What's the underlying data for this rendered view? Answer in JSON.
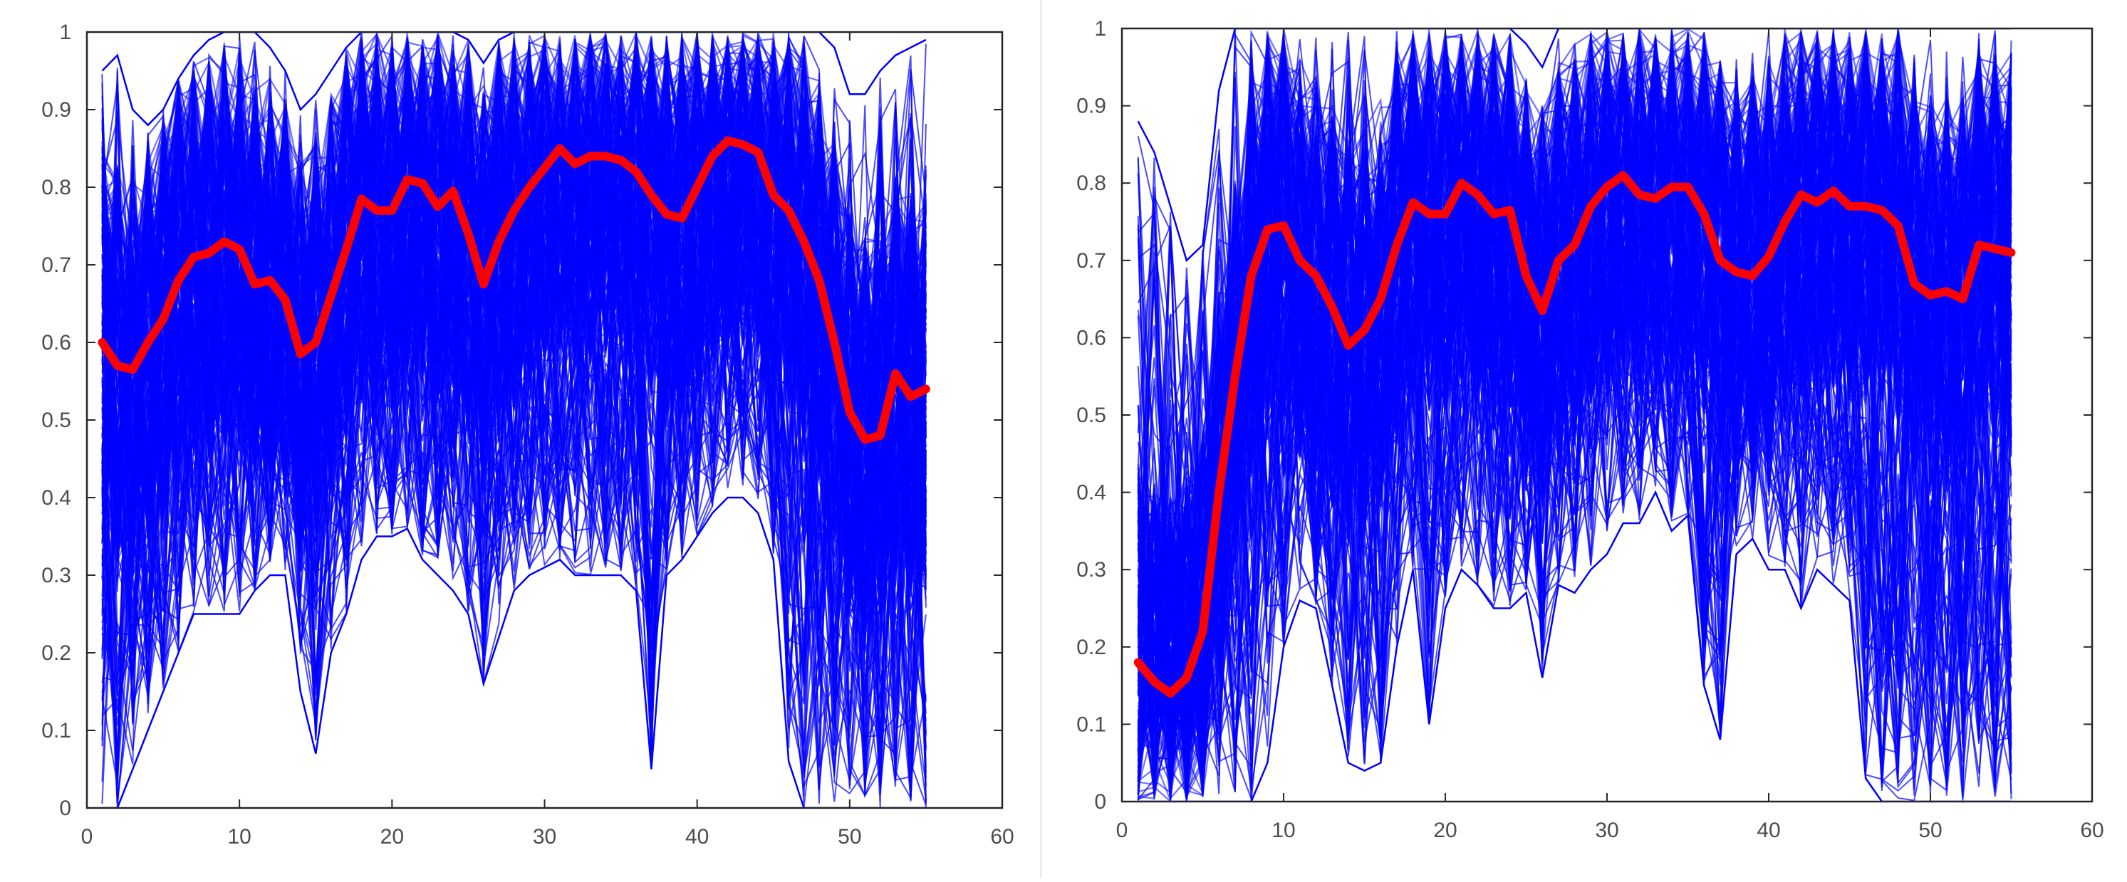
{
  "chart_data": [
    {
      "type": "line",
      "xlim": [
        0,
        60
      ],
      "ylim": [
        0,
        1
      ],
      "xticks": [
        0,
        10,
        20,
        30,
        40,
        50,
        60
      ],
      "yticks": [
        0,
        0.1,
        0.2,
        0.3,
        0.4,
        0.5,
        0.6,
        0.7,
        0.8,
        0.9,
        1
      ],
      "grid": false,
      "legend": "none",
      "series": [
        {
          "role": "individual-traces",
          "color": "#0000ff",
          "x_range": [
            1,
            55
          ],
          "upper_envelope": [
            0.95,
            0.97,
            0.9,
            0.88,
            0.9,
            0.94,
            0.97,
            0.99,
            1,
            1,
            1,
            0.98,
            0.95,
            0.9,
            0.92,
            0.95,
            0.98,
            1,
            1,
            1,
            1,
            1,
            1,
            1,
            0.99,
            0.96,
            0.99,
            1,
            1,
            1,
            1,
            1,
            1,
            1,
            1,
            1,
            1,
            1,
            1,
            1,
            1,
            1,
            1,
            1,
            1,
            1,
            1,
            1,
            0.98,
            0.92,
            0.92,
            0.95,
            0.97,
            0.98,
            0.99
          ],
          "lower_envelope": [
            0,
            0,
            0.05,
            0.1,
            0.15,
            0.2,
            0.25,
            0.25,
            0.25,
            0.25,
            0.28,
            0.3,
            0.3,
            0.15,
            0.07,
            0.2,
            0.25,
            0.32,
            0.35,
            0.35,
            0.36,
            0.32,
            0.3,
            0.28,
            0.25,
            0.16,
            0.22,
            0.28,
            0.3,
            0.31,
            0.32,
            0.3,
            0.3,
            0.3,
            0.3,
            0.28,
            0.05,
            0.3,
            0.32,
            0.35,
            0.38,
            0.4,
            0.4,
            0.38,
            0.32,
            0.06,
            0,
            0,
            0,
            0,
            0,
            0,
            0,
            0,
            0
          ]
        },
        {
          "role": "mean",
          "color": "#ff0000",
          "x": [
            1,
            2,
            3,
            4,
            5,
            6,
            7,
            8,
            9,
            10,
            11,
            12,
            13,
            14,
            15,
            16,
            17,
            18,
            19,
            20,
            21,
            22,
            23,
            24,
            25,
            26,
            27,
            28,
            29,
            30,
            31,
            32,
            33,
            34,
            35,
            36,
            37,
            38,
            39,
            40,
            41,
            42,
            43,
            44,
            45,
            46,
            47,
            48,
            49,
            50,
            51,
            52,
            53,
            54,
            55
          ],
          "y": [
            0.6,
            0.57,
            0.565,
            0.6,
            0.63,
            0.68,
            0.71,
            0.715,
            0.73,
            0.72,
            0.675,
            0.68,
            0.655,
            0.585,
            0.6,
            0.66,
            0.72,
            0.785,
            0.77,
            0.77,
            0.81,
            0.805,
            0.775,
            0.795,
            0.74,
            0.675,
            0.73,
            0.77,
            0.8,
            0.825,
            0.85,
            0.83,
            0.84,
            0.84,
            0.835,
            0.82,
            0.79,
            0.765,
            0.76,
            0.8,
            0.84,
            0.86,
            0.855,
            0.845,
            0.79,
            0.77,
            0.73,
            0.68,
            0.6,
            0.51,
            0.475,
            0.48,
            0.56,
            0.53,
            0.54
          ]
        }
      ]
    },
    {
      "type": "line",
      "xlim": [
        0,
        60
      ],
      "ylim": [
        0,
        1
      ],
      "xticks": [
        0,
        10,
        20,
        30,
        40,
        50,
        60
      ],
      "yticks": [
        0,
        0.1,
        0.2,
        0.3,
        0.4,
        0.5,
        0.6,
        0.7,
        0.8,
        0.9,
        1
      ],
      "grid": false,
      "legend": "none",
      "series": [
        {
          "role": "individual-traces",
          "color": "#0000ff",
          "x_range": [
            1,
            55
          ],
          "upper_envelope": [
            0.88,
            0.84,
            0.77,
            0.7,
            0.72,
            0.92,
            1,
            1,
            1,
            1,
            1,
            1,
            1,
            1,
            1,
            1,
            1,
            1,
            1,
            1,
            1,
            1,
            1,
            1,
            0.98,
            0.95,
            1,
            1,
            1,
            1,
            1,
            1,
            1,
            1,
            1,
            1,
            1,
            1,
            1,
            1,
            1,
            1,
            1,
            1,
            1,
            1,
            1,
            1,
            1,
            1,
            1,
            1,
            1,
            1,
            1
          ],
          "lower_envelope": [
            0,
            0,
            0,
            0,
            0,
            0,
            0,
            0,
            0.05,
            0.2,
            0.26,
            0.25,
            0.15,
            0.05,
            0.04,
            0.05,
            0.2,
            0.3,
            0.1,
            0.25,
            0.3,
            0.28,
            0.25,
            0.25,
            0.27,
            0.16,
            0.28,
            0.27,
            0.3,
            0.32,
            0.36,
            0.36,
            0.4,
            0.35,
            0.37,
            0.15,
            0.08,
            0.32,
            0.34,
            0.3,
            0.3,
            0.25,
            0.3,
            0.28,
            0.26,
            0.03,
            0,
            0,
            0,
            0,
            0,
            0,
            0,
            0,
            0
          ]
        },
        {
          "role": "mean",
          "color": "#ff0000",
          "x": [
            1,
            2,
            3,
            4,
            5,
            6,
            7,
            8,
            9,
            10,
            11,
            12,
            13,
            14,
            15,
            16,
            17,
            18,
            19,
            20,
            21,
            22,
            23,
            24,
            25,
            26,
            27,
            28,
            29,
            30,
            31,
            32,
            33,
            34,
            35,
            36,
            37,
            38,
            39,
            40,
            41,
            42,
            43,
            44,
            45,
            46,
            47,
            48,
            49,
            50,
            51,
            52,
            53,
            54,
            55
          ],
          "y": [
            0.18,
            0.155,
            0.14,
            0.16,
            0.22,
            0.4,
            0.55,
            0.68,
            0.74,
            0.745,
            0.7,
            0.68,
            0.64,
            0.59,
            0.61,
            0.65,
            0.72,
            0.775,
            0.76,
            0.76,
            0.8,
            0.785,
            0.76,
            0.765,
            0.68,
            0.635,
            0.7,
            0.72,
            0.77,
            0.795,
            0.81,
            0.785,
            0.78,
            0.795,
            0.795,
            0.76,
            0.7,
            0.685,
            0.68,
            0.705,
            0.75,
            0.785,
            0.775,
            0.79,
            0.77,
            0.77,
            0.765,
            0.745,
            0.67,
            0.655,
            0.66,
            0.65,
            0.72,
            0.715,
            0.71
          ]
        }
      ]
    }
  ]
}
